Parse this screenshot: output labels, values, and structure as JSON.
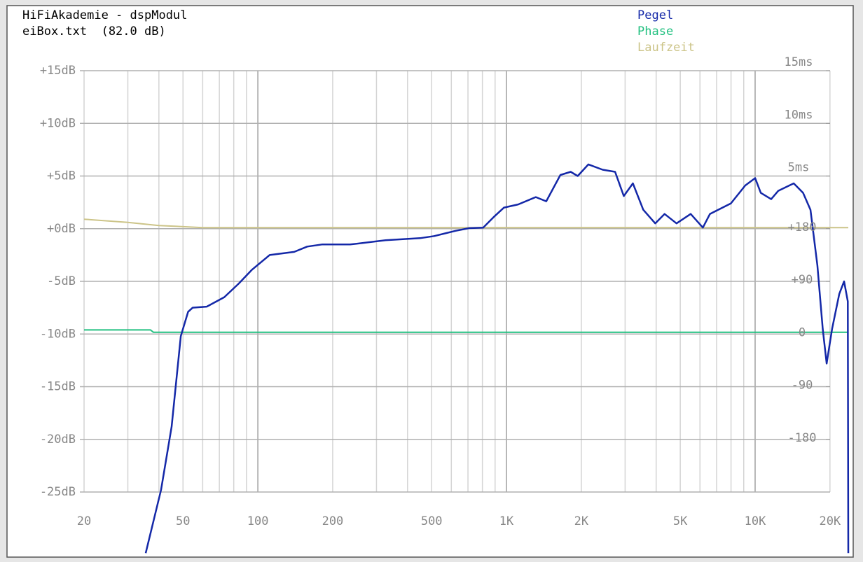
{
  "chart_data": {
    "type": "line",
    "title": "HiFiAkademie - dspModul",
    "subtitle": "eiBox.txt  (82.0 dB)",
    "xscale": "log",
    "xlim": [
      20,
      23700
    ],
    "xticks": [
      20,
      50,
      100,
      200,
      500,
      {
        "value": 1000,
        "label": "1K"
      },
      {
        "value": 2000,
        "label": "2K"
      },
      {
        "value": 5000,
        "label": "5K"
      },
      {
        "value": 10000,
        "label": "10K"
      },
      {
        "value": 20000,
        "label": "20K"
      }
    ],
    "xminorticks": [
      30,
      40,
      60,
      70,
      80,
      90,
      300,
      400,
      600,
      700,
      800,
      900,
      3000,
      4000,
      6000,
      7000,
      8000,
      9000
    ],
    "ylim": [
      -25,
      15
    ],
    "yticks": [
      {
        "value": 15,
        "label": "+15dB"
      },
      {
        "value": 10,
        "label": "+10dB"
      },
      {
        "value": 5,
        "label": "+5dB"
      },
      {
        "value": 0,
        "label": "+0dB"
      },
      {
        "value": -5,
        "label": "-5dB"
      },
      {
        "value": -10,
        "label": "-10dB"
      },
      {
        "value": -15,
        "label": "-15dB"
      },
      {
        "value": -20,
        "label": "-20dB"
      },
      {
        "value": -25,
        "label": "-25dB"
      }
    ],
    "y2lim": [
      -25,
      15
    ],
    "y2ticks": [
      {
        "value": 15,
        "label": "15ms"
      },
      {
        "value": 10,
        "label": "10ms"
      },
      {
        "value": 5,
        "label": "5ms"
      }
    ],
    "y3lim": [
      -270,
      450
    ],
    "y3ticks": [
      {
        "value": 180,
        "label": "+180"
      },
      {
        "value": 90,
        "label": "+90"
      },
      0,
      -90,
      -180
    ],
    "grid": true,
    "legend": "top-right",
    "series": [
      {
        "name": "Pegel",
        "color": "#1428a8",
        "x": [
          35.4,
          40.8,
          45,
          49,
          52.4,
          54.7,
          62.3,
          73.3,
          83.9,
          94.7,
          111.5,
          140,
          158,
          181,
          235,
          326,
          449,
          512,
          624,
          708,
          806,
          888,
          977,
          1114,
          1312,
          1445,
          1648,
          1812,
          1934,
          2135,
          2436,
          2735,
          2963,
          3225,
          3550,
          3966,
          4322,
          4830,
          5507,
          6166,
          6580,
          7990,
          9125,
          10000,
          10540,
          11600,
          12400,
          14300,
          15600,
          16700,
          17800,
          18700,
          19400,
          20400,
          21800,
          22800,
          23600,
          23700
        ],
        "values": [
          -30.8,
          -24.8,
          -18.8,
          -10.2,
          -7.9,
          -7.5,
          -7.4,
          -6.5,
          -5.2,
          -3.9,
          -2.5,
          -2.2,
          -1.7,
          -1.5,
          -1.5,
          -1.1,
          -0.9,
          -0.7,
          -0.2,
          0.05,
          0.1,
          1.1,
          2.0,
          2.3,
          3.0,
          2.6,
          5.1,
          5.4,
          5.0,
          6.1,
          5.6,
          5.4,
          3.1,
          4.3,
          1.8,
          0.5,
          1.4,
          0.5,
          1.4,
          0.1,
          1.4,
          2.4,
          4.1,
          4.8,
          3.4,
          2.8,
          3.6,
          4.3,
          3.4,
          1.8,
          -3.5,
          -9.5,
          -12.8,
          -9.5,
          -6.2,
          -5.0,
          -6.9,
          -30.8
        ]
      },
      {
        "name": "Phase",
        "color": "#22c080",
        "axis": "y3",
        "x": [
          20,
          37,
          38,
          23700
        ],
        "values": [
          7,
          7,
          3,
          3
        ]
      },
      {
        "name": "Laufzeit",
        "color": "#ccc488",
        "axis": "y2",
        "x": [
          20,
          30,
          40,
          60,
          23700
        ],
        "values": [
          0.9,
          0.6,
          0.3,
          0.1,
          0.1
        ]
      }
    ]
  }
}
